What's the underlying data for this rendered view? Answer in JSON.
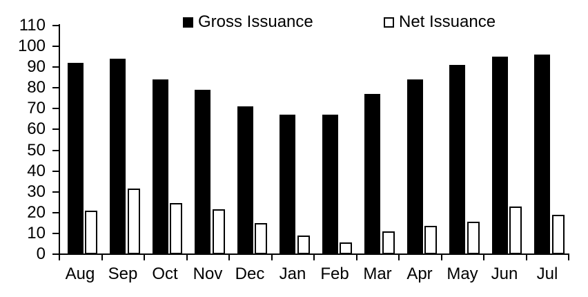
{
  "chart_data": {
    "type": "bar",
    "title": "",
    "xlabel": "",
    "ylabel": "",
    "categories": [
      "Aug",
      "Sep",
      "Oct",
      "Nov",
      "Dec",
      "Jan",
      "Feb",
      "Mar",
      "Apr",
      "May",
      "Jun",
      "Jul"
    ],
    "series": [
      {
        "name": "Gross Issuance",
        "swatch": "filled-square",
        "fill_color": "#000000",
        "stroke_color": "#000000",
        "values": [
          92,
          94,
          84,
          79,
          71,
          67,
          67,
          77,
          84,
          91,
          95,
          96
        ]
      },
      {
        "name": "Net Issuance",
        "swatch": "outlined-square",
        "fill_color": "#ffffff",
        "stroke_color": "#000000",
        "values": [
          21,
          31.5,
          24.5,
          21.5,
          15,
          9,
          5.5,
          11,
          13.5,
          15.5,
          23,
          19
        ]
      }
    ],
    "ylim": [
      0,
      110
    ],
    "yticks": [
      0,
      10,
      20,
      30,
      40,
      50,
      60,
      70,
      80,
      90,
      100,
      110
    ],
    "grid": false,
    "legend_position": "top",
    "axis_color": "#000000",
    "text_color": "#000000",
    "background_color": "#ffffff"
  }
}
